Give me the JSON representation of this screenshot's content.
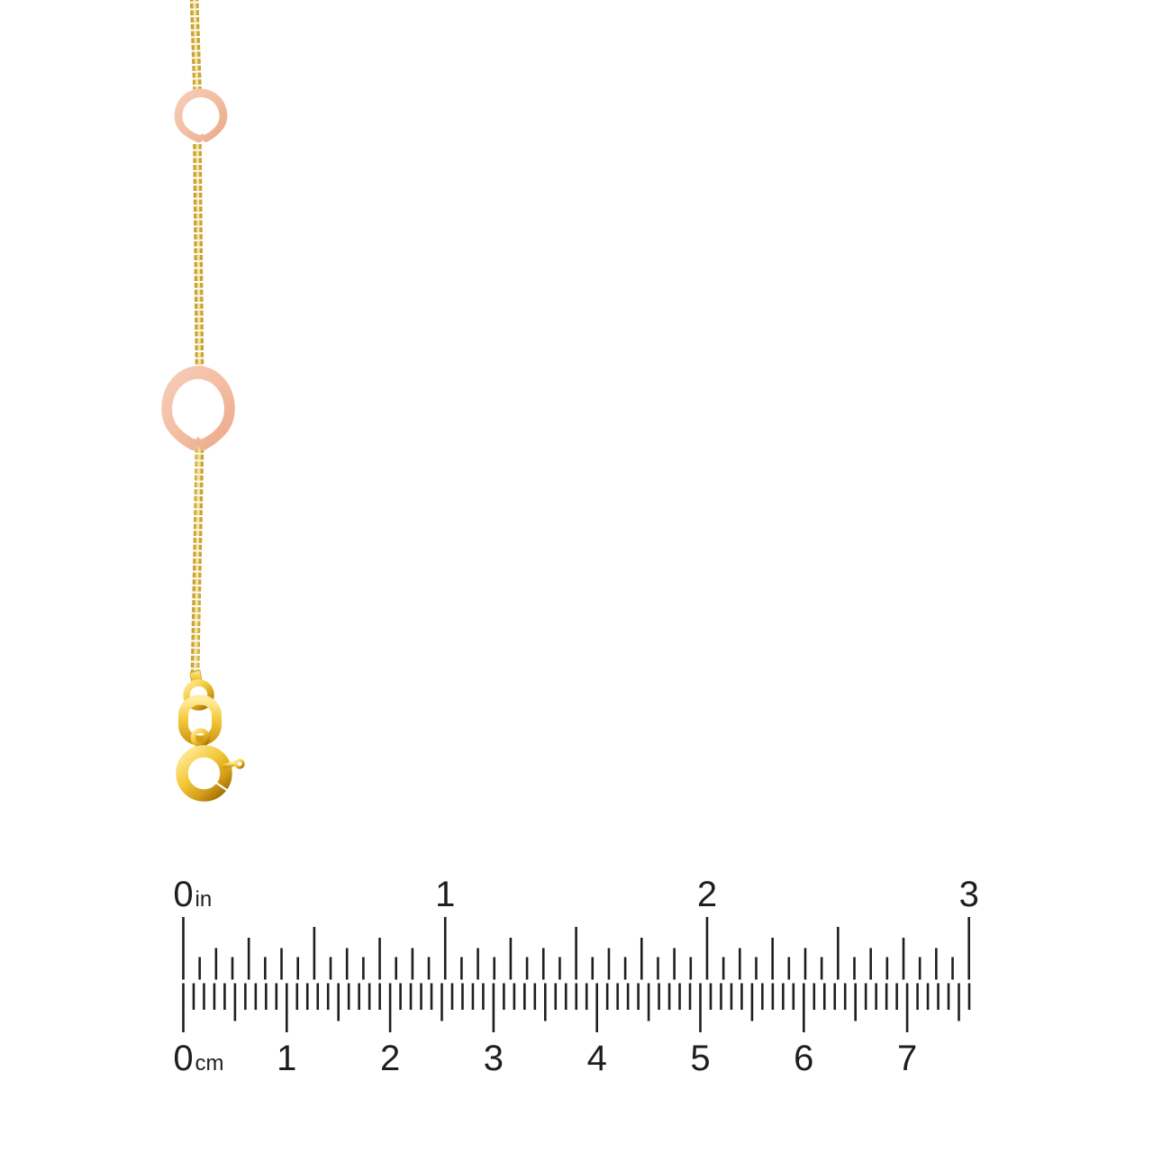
{
  "background_color": "#ffffff",
  "jewelry": {
    "description": "Two-tone gold box chain with rose-gold open heart stations and spring ring clasp",
    "chain": {
      "style": "box-chain",
      "color": "#E9C85B",
      "color_dark": "#C9A335",
      "highlight": "#F9EDB4"
    },
    "hearts": {
      "count_visible": 2,
      "color": "#F3BCA1",
      "highlight": "#F7CFBB",
      "shadow": "#EBA685"
    },
    "clasp": {
      "type": "spring-ring",
      "color": "#F3C838",
      "highlight": "#FFEC9E",
      "shadow": "#D29B17",
      "deep_shadow": "#A87408"
    }
  },
  "ruler": {
    "text_color": "#1e1e1e",
    "tick_color": "#1e1e1e",
    "inches": {
      "unit": "in",
      "labels": [
        "0",
        "1",
        "2",
        "3"
      ],
      "minor_divisions_per_inch": 16
    },
    "centimeters": {
      "unit": "cm",
      "labels": [
        "0",
        "1",
        "2",
        "3",
        "4",
        "5",
        "6",
        "7"
      ],
      "millimeter_ticks": 76
    }
  }
}
